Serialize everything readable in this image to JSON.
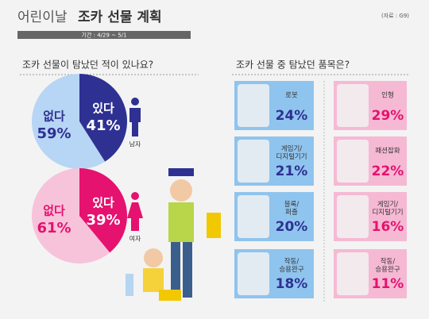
{
  "header": {
    "title_light": "어린이날",
    "title_bold": "조카 선물 계획",
    "period": "기간 : 4/29 ~ 5/1",
    "source": "(자료 : G9)"
  },
  "left": {
    "question": "조카 선물이 탐났던 적이 있나요?",
    "pies": [
      {
        "gender": "남자",
        "color_yes": "#2e3192",
        "color_no": "#b7d5f4",
        "yes": {
          "label": "있다",
          "value": 41,
          "value_label": "41%"
        },
        "no": {
          "label": "없다",
          "value": 59,
          "value_label": "59%"
        }
      },
      {
        "gender": "여자",
        "color_yes": "#e5126f",
        "color_no": "#f7c3da",
        "yes": {
          "label": "있다",
          "value": 39,
          "value_label": "39%"
        },
        "no": {
          "label": "없다",
          "value": 61,
          "value_label": "61%"
        }
      }
    ]
  },
  "right": {
    "question": "조카 선물 중 탐났던 품목은?",
    "columns": [
      {
        "box_color": "#8fc4ee",
        "text_color": "#2e3192",
        "items": [
          {
            "label": "로봇",
            "value": 24,
            "value_label": "24%"
          },
          {
            "label": "게임기/디지털기기",
            "value": 21,
            "value_label": "21%"
          },
          {
            "label": "블록/퍼즐",
            "value": 20,
            "value_label": "20%"
          },
          {
            "label": "작동/승용완구",
            "value": 18,
            "value_label": "18%"
          }
        ]
      },
      {
        "box_color": "#f6b9d4",
        "text_color": "#e5126f",
        "items": [
          {
            "label": "인형",
            "value": 29,
            "value_label": "29%"
          },
          {
            "label": "패션잡화",
            "value": 22,
            "value_label": "22%"
          },
          {
            "label": "게임기/디지털기기",
            "value": 16,
            "value_label": "16%"
          },
          {
            "label": "작동/승용완구",
            "value": 11,
            "value_label": "11%"
          }
        ]
      }
    ]
  }
}
